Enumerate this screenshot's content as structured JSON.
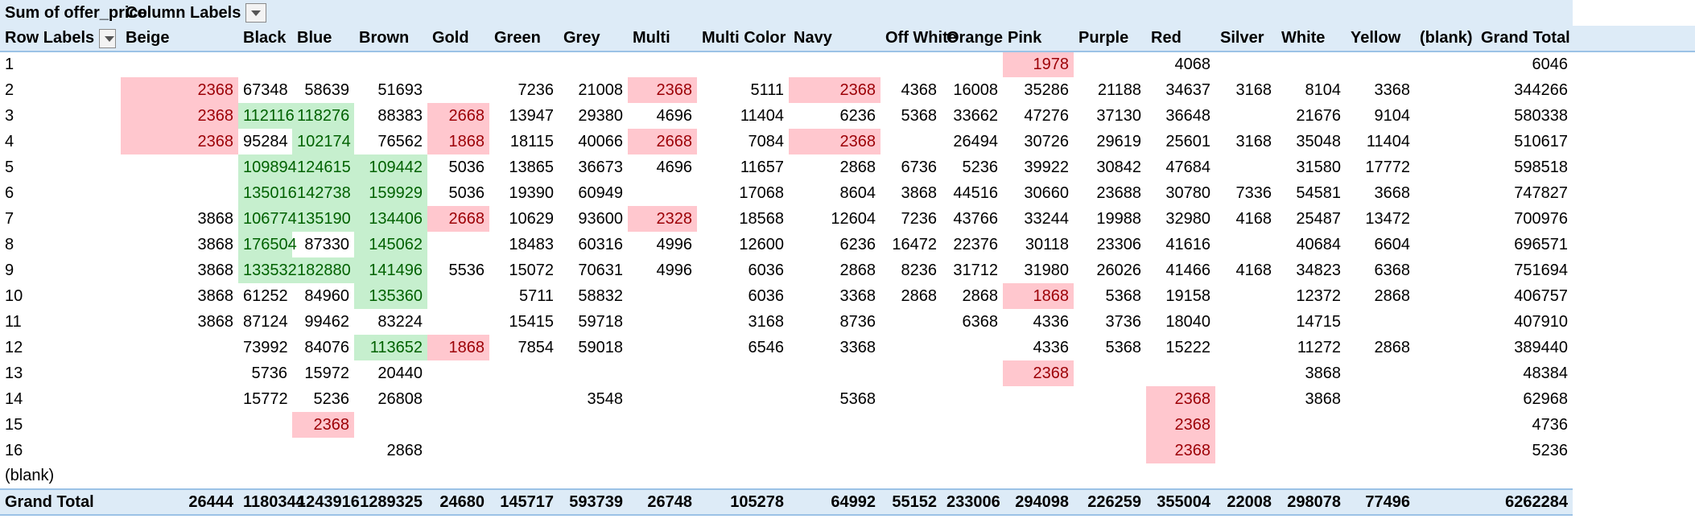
{
  "pivot": {
    "title": "Sum of offer_price",
    "column_labels": "Column Labels",
    "row_labels": "Row Labels",
    "columns": [
      "Beige",
      "Black",
      "Blue",
      "Brown",
      "Gold",
      "Green",
      "Grey",
      "Multi",
      "Multi Color",
      "Navy",
      "Off White",
      "Orange",
      "Pink",
      "Purple",
      "Red",
      "Silver",
      "White",
      "Yellow",
      "(blank)",
      "Grand Total"
    ],
    "rows": [
      {
        "label": "1",
        "cells": [
          "",
          "",
          "",
          "",
          "",
          "",
          "",
          "",
          "",
          "",
          "",
          "",
          "1978",
          "",
          "4068",
          "",
          "",
          "",
          "",
          "6046"
        ]
      },
      {
        "label": "2",
        "cells": [
          "2368",
          "67348",
          "58639",
          "51693",
          "",
          "7236",
          "21008",
          "2368",
          "5111",
          "2368",
          "4368",
          "16008",
          "35286",
          "21188",
          "34637",
          "3168",
          "8104",
          "3368",
          "",
          "344266"
        ]
      },
      {
        "label": "3",
        "cells": [
          "2368",
          "112116",
          "118276",
          "88383",
          "2668",
          "13947",
          "29380",
          "4696",
          "11404",
          "6236",
          "5368",
          "33662",
          "47276",
          "37130",
          "36648",
          "",
          "21676",
          "9104",
          "",
          "580338"
        ]
      },
      {
        "label": "4",
        "cells": [
          "2368",
          "95284",
          "102174",
          "76562",
          "1868",
          "18115",
          "40066",
          "2668",
          "7084",
          "2368",
          "",
          "26494",
          "30726",
          "29619",
          "25601",
          "3168",
          "35048",
          "11404",
          "",
          "510617"
        ]
      },
      {
        "label": "5",
        "cells": [
          "",
          "109894",
          "124615",
          "109442",
          "5036",
          "13865",
          "36673",
          "4696",
          "11657",
          "2868",
          "6736",
          "5236",
          "39922",
          "30842",
          "47684",
          "",
          "31580",
          "17772",
          "",
          "598518"
        ]
      },
      {
        "label": "6",
        "cells": [
          "",
          "135016",
          "142738",
          "159929",
          "5036",
          "19390",
          "60949",
          "",
          "17068",
          "8604",
          "3868",
          "44516",
          "30660",
          "23688",
          "30780",
          "7336",
          "54581",
          "3668",
          "",
          "747827"
        ]
      },
      {
        "label": "7",
        "cells": [
          "3868",
          "106774",
          "135190",
          "134406",
          "2668",
          "10629",
          "93600",
          "2328",
          "18568",
          "12604",
          "7236",
          "43766",
          "33244",
          "19988",
          "32980",
          "4168",
          "25487",
          "13472",
          "",
          "700976"
        ]
      },
      {
        "label": "8",
        "cells": [
          "3868",
          "176504",
          "87330",
          "145062",
          "",
          "18483",
          "60316",
          "4996",
          "12600",
          "6236",
          "16472",
          "22376",
          "30118",
          "23306",
          "41616",
          "",
          "40684",
          "6604",
          "",
          "696571"
        ]
      },
      {
        "label": "9",
        "cells": [
          "3868",
          "133532",
          "182880",
          "141496",
          "5536",
          "15072",
          "70631",
          "4996",
          "6036",
          "2868",
          "8236",
          "31712",
          "31980",
          "26026",
          "41466",
          "4168",
          "34823",
          "6368",
          "",
          "751694"
        ]
      },
      {
        "label": "10",
        "cells": [
          "3868",
          "61252",
          "84960",
          "135360",
          "",
          "5711",
          "58832",
          "",
          "6036",
          "3368",
          "2868",
          "2868",
          "1868",
          "5368",
          "19158",
          "",
          "12372",
          "2868",
          "",
          "406757"
        ]
      },
      {
        "label": "11",
        "cells": [
          "3868",
          "87124",
          "99462",
          "83224",
          "",
          "15415",
          "59718",
          "",
          "3168",
          "8736",
          "",
          "6368",
          "4336",
          "3736",
          "18040",
          "",
          "14715",
          "",
          "",
          "407910"
        ]
      },
      {
        "label": "12",
        "cells": [
          "",
          "73992",
          "84076",
          "113652",
          "1868",
          "7854",
          "59018",
          "",
          "6546",
          "3368",
          "",
          "",
          "4336",
          "5368",
          "15222",
          "",
          "11272",
          "2868",
          "",
          "389440"
        ]
      },
      {
        "label": "13",
        "cells": [
          "",
          "5736",
          "15972",
          "20440",
          "",
          "",
          "",
          "",
          "",
          "",
          "",
          "",
          "2368",
          "",
          "",
          "",
          "3868",
          "",
          "",
          "48384"
        ]
      },
      {
        "label": "14",
        "cells": [
          "",
          "15772",
          "5236",
          "26808",
          "",
          "",
          "3548",
          "",
          "",
          "5368",
          "",
          "",
          "",
          "",
          "2368",
          "",
          "3868",
          "",
          "",
          "62968"
        ]
      },
      {
        "label": "15",
        "cells": [
          "",
          "",
          "2368",
          "",
          "",
          "",
          "",
          "",
          "",
          "",
          "",
          "",
          "",
          "",
          "2368",
          "",
          "",
          "",
          "",
          "4736"
        ]
      },
      {
        "label": "16",
        "cells": [
          "",
          "",
          "",
          "2868",
          "",
          "",
          "",
          "",
          "",
          "",
          "",
          "",
          "",
          "",
          "2368",
          "",
          "",
          "",
          "",
          "5236"
        ]
      },
      {
        "label": "(blank)",
        "cells": [
          "",
          "",
          "",
          "",
          "",
          "",
          "",
          "",
          "",
          "",
          "",
          "",
          "",
          "",
          "",
          "",
          "",
          "",
          "",
          ""
        ]
      }
    ],
    "grand_total": {
      "label": "Grand Total",
      "cells": [
        "26444",
        "1180344",
        "1243916",
        "1289325",
        "24680",
        "145717",
        "593739",
        "26748",
        "105278",
        "64992",
        "55152",
        "233006",
        "294098",
        "226259",
        "355004",
        "22008",
        "298078",
        "77496",
        "",
        "6262284"
      ]
    },
    "highlight_colors": {
      "green_fill": "#c6efce",
      "green_text": "#006100",
      "red_fill": "#ffc7ce",
      "red_text": "#9c0006",
      "header_fill": "#ddebf7"
    },
    "highlights": {
      "green": [
        [
          3,
          2
        ],
        [
          3,
          3
        ],
        [
          4,
          3
        ],
        [
          5,
          2
        ],
        [
          5,
          3
        ],
        [
          5,
          4
        ],
        [
          6,
          2
        ],
        [
          6,
          3
        ],
        [
          6,
          4
        ],
        [
          7,
          2
        ],
        [
          7,
          3
        ],
        [
          7,
          4
        ],
        [
          8,
          2
        ],
        [
          8,
          4
        ],
        [
          9,
          2
        ],
        [
          9,
          3
        ],
        [
          9,
          4
        ],
        [
          10,
          4
        ],
        [
          12,
          4
        ]
      ],
      "red": [
        [
          2,
          1
        ],
        [
          2,
          8
        ],
        [
          2,
          10
        ],
        [
          3,
          1
        ],
        [
          3,
          5
        ],
        [
          4,
          1
        ],
        [
          4,
          5
        ],
        [
          4,
          8
        ],
        [
          4,
          10
        ],
        [
          7,
          5
        ],
        [
          7,
          8
        ],
        [
          1,
          13
        ],
        [
          10,
          13
        ],
        [
          13,
          13
        ],
        [
          12,
          5
        ],
        [
          14,
          15
        ],
        [
          15,
          3
        ],
        [
          15,
          15
        ],
        [
          16,
          15
        ]
      ]
    }
  }
}
